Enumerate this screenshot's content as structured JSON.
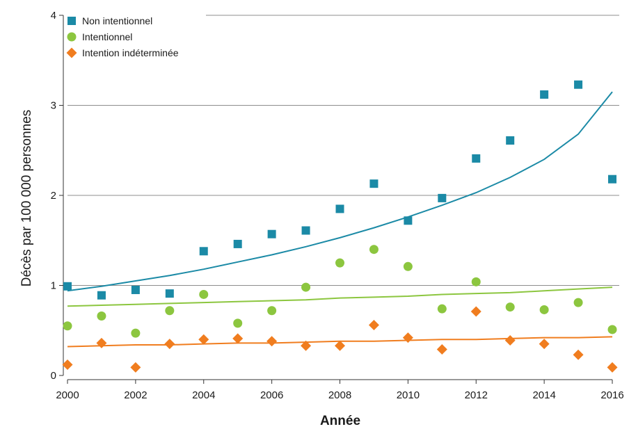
{
  "chart_data": {
    "type": "scatter",
    "xlabel": "Année",
    "ylabel": "Décès par 100 000 personnes",
    "xlim": [
      2000,
      2016
    ],
    "ylim": [
      0,
      4
    ],
    "x_ticks": [
      2000,
      2002,
      2004,
      2006,
      2008,
      2010,
      2012,
      2014,
      2016
    ],
    "y_ticks": [
      0,
      1,
      2,
      3,
      4
    ],
    "grid": "horizontal",
    "legend_position": "top-left",
    "x": [
      2000,
      2001,
      2002,
      2003,
      2004,
      2005,
      2006,
      2007,
      2008,
      2009,
      2010,
      2011,
      2012,
      2013,
      2014,
      2015,
      2016
    ],
    "series": [
      {
        "name": "Non intentionnel",
        "marker": "square",
        "color": "#1b8aa6",
        "values": [
          0.99,
          0.89,
          0.95,
          0.91,
          1.38,
          1.46,
          1.57,
          1.61,
          1.85,
          2.13,
          1.72,
          1.97,
          2.41,
          2.61,
          3.12,
          3.23,
          2.18
        ],
        "trend": [
          0.94,
          0.99,
          1.05,
          1.11,
          1.18,
          1.26,
          1.34,
          1.43,
          1.53,
          1.64,
          1.76,
          1.89,
          2.03,
          2.2,
          2.4,
          2.68,
          3.15
        ]
      },
      {
        "name": "Intentionnel",
        "marker": "circle",
        "color": "#8cc63f",
        "values": [
          0.55,
          0.66,
          0.47,
          0.72,
          0.9,
          0.58,
          0.72,
          0.98,
          1.25,
          1.4,
          1.21,
          0.74,
          1.04,
          0.76,
          0.73,
          0.81,
          0.51
        ],
        "trend": [
          0.77,
          0.78,
          0.79,
          0.8,
          0.81,
          0.82,
          0.83,
          0.84,
          0.86,
          0.87,
          0.88,
          0.9,
          0.91,
          0.92,
          0.94,
          0.96,
          0.98
        ]
      },
      {
        "name": "Intention indéterminée",
        "marker": "diamond",
        "color": "#f07d1f",
        "values": [
          0.12,
          0.36,
          0.09,
          0.35,
          0.4,
          0.41,
          0.38,
          0.33,
          0.33,
          0.56,
          0.42,
          0.29,
          0.71,
          0.39,
          0.35,
          0.23,
          0.09
        ],
        "trend": [
          0.32,
          0.33,
          0.34,
          0.34,
          0.35,
          0.36,
          0.36,
          0.37,
          0.38,
          0.38,
          0.39,
          0.4,
          0.4,
          0.41,
          0.42,
          0.42,
          0.43
        ]
      }
    ]
  }
}
